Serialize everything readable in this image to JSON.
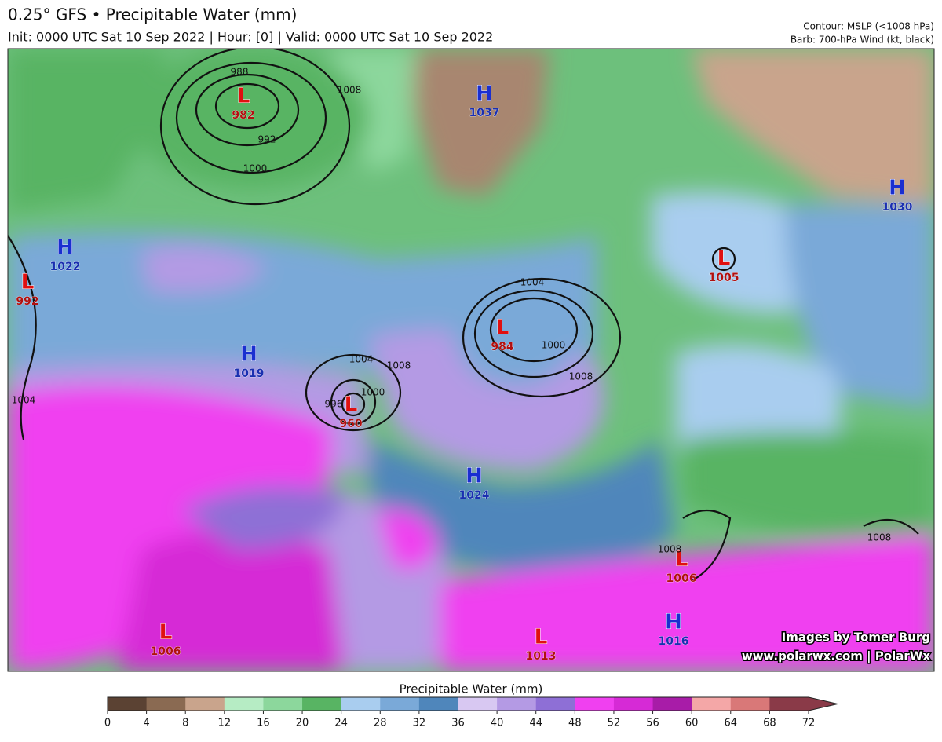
{
  "header": {
    "title": "0.25° GFS • Precipitable Water (mm)",
    "subtitle": "Init: 0000 UTC Sat 10 Sep 2022 | Hour: [0] | Valid: 0000 UTC Sat 10 Sep 2022",
    "contour_note": "Contour: MSLP (<1008 hPa)",
    "barb_note": "Barb: 700-hPa Wind (kt, black)"
  },
  "pressure_centers": [
    {
      "kind": "L",
      "value": "982"
    },
    {
      "kind": "H",
      "value": "1037"
    },
    {
      "kind": "H",
      "value": "1030"
    },
    {
      "kind": "H",
      "value": "1022"
    },
    {
      "kind": "L",
      "value": "992"
    },
    {
      "kind": "L",
      "value": "1005"
    },
    {
      "kind": "L",
      "value": "984"
    },
    {
      "kind": "H",
      "value": "1019"
    },
    {
      "kind": "L",
      "value": "960"
    },
    {
      "kind": "H",
      "value": "1024"
    },
    {
      "kind": "L",
      "value": "1006"
    },
    {
      "kind": "H",
      "value": "1016"
    },
    {
      "kind": "L",
      "value": "1006"
    },
    {
      "kind": "L",
      "value": "1013"
    }
  ],
  "contour_labels": [
    "988",
    "992",
    "1000",
    "1008",
    "1004",
    "1000",
    "1008",
    "1004",
    "1008",
    "996",
    "1000",
    "1008",
    "1008",
    "1004"
  ],
  "colorbar": {
    "title": "Precipitable Water (mm)",
    "ticks": [
      0,
      4,
      8,
      12,
      16,
      20,
      24,
      28,
      32,
      36,
      40,
      44,
      48,
      52,
      56,
      60,
      64,
      68,
      72
    ],
    "colors": [
      "#5b4233",
      "#8a6a52",
      "#c9a48c",
      "#b6ecc4",
      "#8cd79c",
      "#58b463",
      "#a9cdef",
      "#7aa9d8",
      "#4f86bb",
      "#d8c8f2",
      "#b49ae4",
      "#8e6fd6",
      "#f040f0",
      "#d62ad6",
      "#a81ca8",
      "#f4a7a7",
      "#d97878",
      "#8a3a48"
    ]
  },
  "credits": [
    "Images by Tomer Burg",
    "www.polarwx.com | PolarWx"
  ]
}
